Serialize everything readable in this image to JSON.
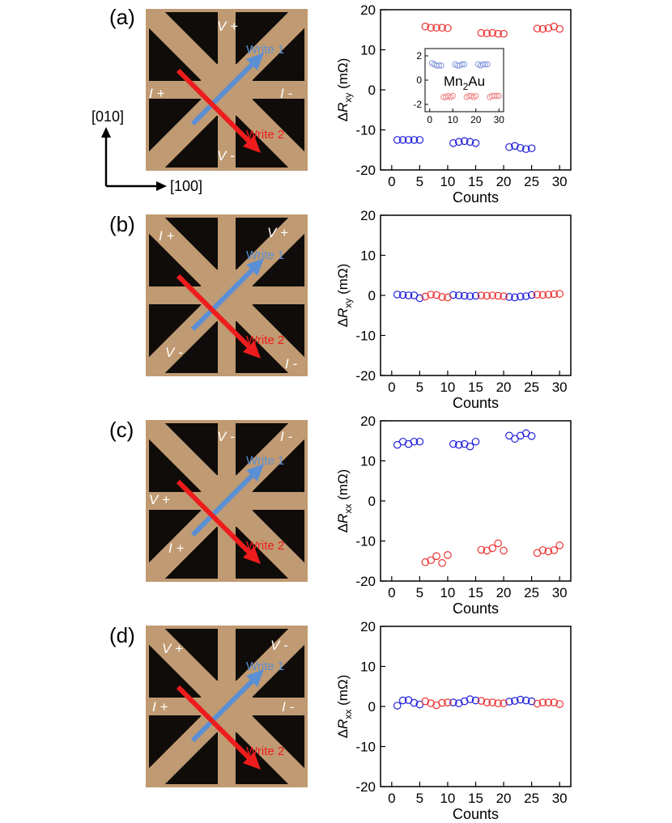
{
  "panels": [
    {
      "label": "(a)",
      "micro_labels": {
        "top": "V +",
        "left": "I +",
        "right": "I -",
        "bottom": "V -"
      },
      "write1": "Write 1",
      "write2": "Write 2"
    },
    {
      "label": "(b)",
      "micro_labels": {
        "top_left": "I +",
        "top_right": "V +",
        "bottom_left": "V -",
        "bottom_right": "I -"
      },
      "write1": "Write 1",
      "write2": "Write 2"
    },
    {
      "label": "(c)",
      "micro_labels": {
        "top": "V -",
        "top_right": "I -",
        "left": "V +",
        "bottom_left": "I +"
      },
      "write1": "Write 1",
      "write2": "Write 2"
    },
    {
      "label": "(d)",
      "micro_labels": {
        "top_left": "V +",
        "top_right": "V -",
        "left": "I +",
        "right": "I -"
      },
      "write1": "Write 1",
      "write2": "Write 2"
    }
  ],
  "axes_indicator": {
    "vertical": "[010]",
    "horizontal": "[100]"
  },
  "colors": {
    "write1_arrow": "#5b8fd4",
    "write2_arrow": "#ee1c1c",
    "series_blue": "#2222dd",
    "series_red": "#ee3333",
    "film": "#c09a72",
    "substrate": "#0f0c0a"
  },
  "chart_data": [
    {
      "type": "scatter",
      "xlabel": "Counts",
      "ylabel_main": "ΔR",
      "ylabel_sub": "xy",
      "ylabel_unit": "(mΩ)",
      "xlim": [
        -2,
        32
      ],
      "ylim": [
        -20,
        20
      ],
      "xticks": [
        0,
        5,
        10,
        15,
        20,
        25,
        30
      ],
      "yticks": [
        -20,
        -10,
        0,
        10,
        20
      ],
      "series": [
        {
          "color": "#2222dd",
          "x": [
            1,
            2,
            3,
            4,
            5,
            11,
            12,
            13,
            14,
            15,
            21,
            22,
            23,
            24,
            25
          ],
          "y": [
            -12.5,
            -12.5,
            -12.5,
            -12.5,
            -12.5,
            -13.3,
            -13.0,
            -12.8,
            -13.0,
            -13.3,
            -14.3,
            -14.0,
            -14.5,
            -14.8,
            -14.6
          ]
        },
        {
          "color": "#ee3333",
          "x": [
            6,
            7,
            8,
            9,
            10,
            16,
            17,
            18,
            19,
            20,
            26,
            27,
            28,
            29,
            30
          ],
          "y": [
            15.8,
            15.5,
            15.5,
            15.5,
            15.4,
            14.2,
            14.1,
            14.2,
            14.0,
            14.0,
            15.3,
            15.2,
            15.4,
            15.8,
            15.2
          ]
        }
      ],
      "inset": {
        "label": "Mn2Au",
        "xlim": [
          -2,
          32
        ],
        "ylim": [
          -2.6,
          2.6
        ],
        "xticks": [
          0,
          10,
          20,
          30
        ],
        "yticks": [
          -2,
          0,
          2
        ],
        "series": [
          {
            "color": "#8899dd",
            "x": [
              1,
              2,
              3,
              4,
              5,
              11,
              12,
              13,
              14,
              15,
              21,
              22,
              23,
              24,
              25
            ],
            "y": [
              1.4,
              1.3,
              1.2,
              1.2,
              1.2,
              1.3,
              1.2,
              1.2,
              1.3,
              1.3,
              1.3,
              1.2,
              1.3,
              1.3,
              1.3
            ]
          },
          {
            "color": "#ee8888",
            "x": [
              6,
              7,
              8,
              9,
              10,
              16,
              17,
              18,
              19,
              20,
              26,
              27,
              28,
              29,
              30
            ],
            "y": [
              -1.4,
              -1.4,
              -1.3,
              -1.4,
              -1.3,
              -1.4,
              -1.3,
              -1.3,
              -1.4,
              -1.3,
              -1.4,
              -1.3,
              -1.3,
              -1.3,
              -1.3
            ]
          }
        ]
      }
    },
    {
      "type": "scatter",
      "xlabel": "Counts",
      "ylabel_main": "ΔR",
      "ylabel_sub": "xy",
      "ylabel_unit": "(mΩ)",
      "xlim": [
        -2,
        32
      ],
      "ylim": [
        -20,
        20
      ],
      "xticks": [
        0,
        5,
        10,
        15,
        20,
        25,
        30
      ],
      "yticks": [
        -20,
        -10,
        0,
        10,
        20
      ],
      "series": [
        {
          "color": "#2222dd",
          "x": [
            1,
            2,
            3,
            4,
            5,
            11,
            12,
            13,
            14,
            15,
            21,
            22,
            23,
            24,
            25
          ],
          "y": [
            0.2,
            0.1,
            0.0,
            0.0,
            -0.7,
            0.1,
            0.0,
            -0.1,
            -0.2,
            -0.1,
            -0.4,
            -0.5,
            -0.3,
            -0.2,
            0.1
          ]
        },
        {
          "color": "#ee3333",
          "x": [
            6,
            7,
            8,
            9,
            10,
            16,
            17,
            18,
            19,
            20,
            26,
            27,
            28,
            29,
            30
          ],
          "y": [
            -0.3,
            0.2,
            0.1,
            -0.4,
            -0.5,
            0.0,
            -0.1,
            0.0,
            -0.1,
            -0.2,
            0.2,
            0.1,
            0.2,
            0.3,
            0.4
          ]
        }
      ]
    },
    {
      "type": "scatter",
      "xlabel": "Counts",
      "ylabel_main": "ΔR",
      "ylabel_sub": "xx",
      "ylabel_unit": "(mΩ)",
      "xlim": [
        -2,
        32
      ],
      "ylim": [
        -20,
        20
      ],
      "xticks": [
        0,
        5,
        10,
        15,
        20,
        25,
        30
      ],
      "yticks": [
        -20,
        -10,
        0,
        10,
        20
      ],
      "series": [
        {
          "color": "#2222dd",
          "x": [
            1,
            2,
            3,
            4,
            5,
            11,
            12,
            13,
            14,
            15,
            21,
            22,
            23,
            24,
            25
          ],
          "y": [
            14.0,
            14.8,
            14.2,
            14.8,
            14.8,
            14.2,
            14.0,
            14.2,
            13.6,
            14.8,
            16.3,
            15.5,
            16.3,
            16.9,
            16.2
          ]
        },
        {
          "color": "#ee3333",
          "x": [
            6,
            7,
            8,
            9,
            10,
            16,
            17,
            18,
            19,
            20,
            26,
            27,
            28,
            29,
            30
          ],
          "y": [
            -15.3,
            -14.8,
            -13.8,
            -15.5,
            -13.5,
            -12.2,
            -12.4,
            -11.8,
            -10.6,
            -12.4,
            -13.0,
            -12.3,
            -12.6,
            -12.3,
            -11.1
          ]
        }
      ]
    },
    {
      "type": "scatter",
      "xlabel": "Counts",
      "ylabel_main": "ΔR",
      "ylabel_sub": "xx",
      "ylabel_unit": "(mΩ)",
      "xlim": [
        -2,
        32
      ],
      "ylim": [
        -20,
        20
      ],
      "xticks": [
        0,
        5,
        10,
        15,
        20,
        25,
        30
      ],
      "yticks": [
        -20,
        -10,
        0,
        10,
        20
      ],
      "series": [
        {
          "color": "#2222dd",
          "x": [
            1,
            2,
            3,
            4,
            5,
            11,
            12,
            13,
            14,
            15,
            21,
            22,
            23,
            24,
            25
          ],
          "y": [
            0.2,
            1.5,
            1.6,
            0.9,
            0.5,
            1.0,
            0.8,
            1.3,
            1.8,
            1.5,
            1.2,
            1.4,
            1.7,
            1.5,
            1.3
          ]
        },
        {
          "color": "#ee3333",
          "x": [
            6,
            7,
            8,
            9,
            10,
            16,
            17,
            18,
            19,
            20,
            26,
            27,
            28,
            29,
            30
          ],
          "y": [
            1.3,
            0.8,
            0.3,
            0.9,
            1.0,
            1.4,
            1.0,
            1.0,
            0.8,
            0.8,
            0.7,
            1.0,
            1.0,
            1.0,
            0.6
          ]
        }
      ]
    }
  ]
}
